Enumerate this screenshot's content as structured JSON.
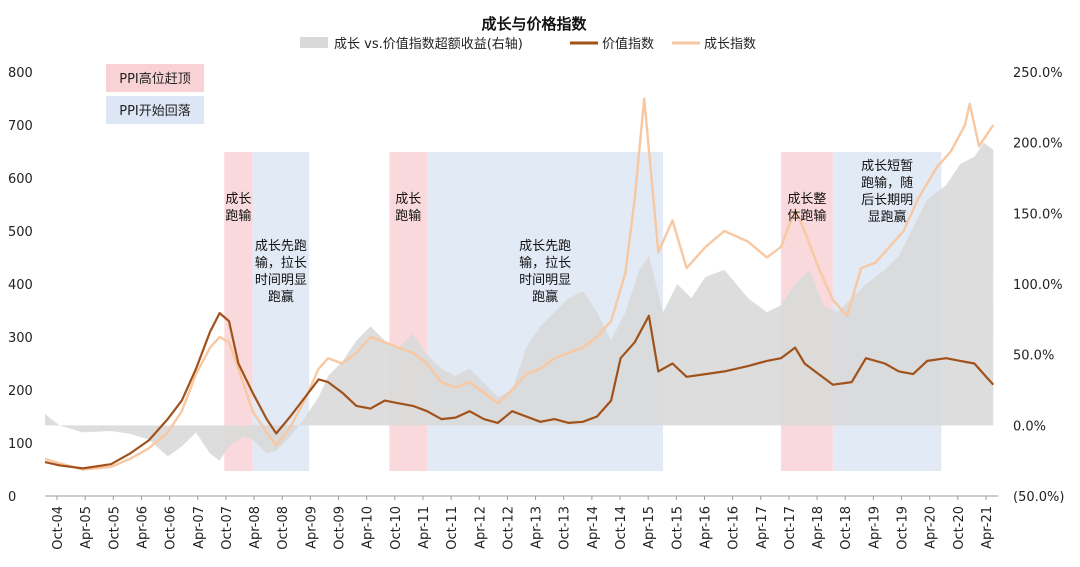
{
  "chart_data": {
    "type": "line",
    "title": "成长与价格指数",
    "colors": {
      "excess": "#d9d9d9",
      "value": "#a0521a",
      "growth": "#f7c8a2",
      "ppi_peak": "#f9d2d6",
      "ppi_fall": "#dde6f5"
    },
    "legend": {
      "excess": "成长 vs.价值指数超额收益(右轴)",
      "value": "价值指数",
      "growth": "成长指数"
    },
    "y_left": {
      "ticks": [
        "0",
        "100",
        "200",
        "300",
        "400",
        "500",
        "600",
        "700",
        "800"
      ],
      "min": 0,
      "max": 800
    },
    "y_right": {
      "ticks": [
        "(50.0%)",
        "0.0%",
        "50.0%",
        "100.0%",
        "150.0%",
        "200.0%",
        "250.0%"
      ],
      "min": -50,
      "max": 250
    },
    "x_ticks": [
      "Oct-04",
      "Apr-05",
      "Oct-05",
      "Apr-06",
      "Oct-06",
      "Apr-07",
      "Oct-07",
      "Apr-08",
      "Oct-08",
      "Apr-09",
      "Oct-09",
      "Apr-10",
      "Oct-10",
      "Apr-11",
      "Oct-11",
      "Apr-12",
      "Oct-12",
      "Apr-13",
      "Oct-13",
      "Apr-14",
      "Oct-14",
      "Apr-15",
      "Oct-15",
      "Apr-16",
      "Oct-16",
      "Apr-17",
      "Oct-17",
      "Apr-18",
      "Oct-18",
      "Apr-19",
      "Oct-19",
      "Apr-20",
      "Oct-20",
      "Apr-21"
    ],
    "shade_legend": {
      "peak": "PPI高位赶顶",
      "fall": "PPI开始回落"
    },
    "shaded_regions": [
      {
        "kind": "peak",
        "start": "2007-12",
        "end": "2008-06",
        "label_lines": [
          "成长",
          "跑输"
        ]
      },
      {
        "kind": "fall",
        "start": "2008-06",
        "end": "2009-06",
        "label_lines": [
          "成长先跑",
          "输，拉长",
          "时间明显",
          "跑赢"
        ]
      },
      {
        "kind": "peak",
        "start": "2010-11",
        "end": "2011-07",
        "label_lines": [
          "成长",
          "跑输"
        ]
      },
      {
        "kind": "fall",
        "start": "2011-07",
        "end": "2015-09",
        "label_lines": [
          "成长先跑",
          "输，拉长",
          "时间明显",
          "跑赢"
        ]
      },
      {
        "kind": "peak",
        "start": "2017-10",
        "end": "2018-09",
        "label_lines": [
          "成长整",
          "体跑输"
        ]
      },
      {
        "kind": "fall",
        "start": "2018-09",
        "end": "2020-08",
        "label_lines": [
          "成长短暂",
          "跑输，随",
          "后长期明",
          "显跑赢"
        ]
      }
    ],
    "series": [
      {
        "name": "价值指数",
        "axis": "left",
        "key": "value",
        "points": [
          [
            "2004-10",
            64
          ],
          [
            "2005-01",
            58
          ],
          [
            "2005-06",
            52
          ],
          [
            "2005-12",
            60
          ],
          [
            "2006-04",
            80
          ],
          [
            "2006-08",
            105
          ],
          [
            "2006-12",
            145
          ],
          [
            "2007-03",
            180
          ],
          [
            "2007-06",
            240
          ],
          [
            "2007-09",
            310
          ],
          [
            "2007-11",
            345
          ],
          [
            "2008-01",
            330
          ],
          [
            "2008-03",
            250
          ],
          [
            "2008-06",
            195
          ],
          [
            "2008-09",
            145
          ],
          [
            "2008-11",
            118
          ],
          [
            "2009-02",
            150
          ],
          [
            "2009-05",
            185
          ],
          [
            "2009-08",
            220
          ],
          [
            "2009-10",
            215
          ],
          [
            "2010-01",
            195
          ],
          [
            "2010-04",
            170
          ],
          [
            "2010-07",
            165
          ],
          [
            "2010-10",
            180
          ],
          [
            "2011-01",
            175
          ],
          [
            "2011-04",
            170
          ],
          [
            "2011-07",
            160
          ],
          [
            "2011-10",
            145
          ],
          [
            "2012-01",
            148
          ],
          [
            "2012-04",
            160
          ],
          [
            "2012-07",
            145
          ],
          [
            "2012-10",
            138
          ],
          [
            "2013-01",
            160
          ],
          [
            "2013-04",
            150
          ],
          [
            "2013-07",
            140
          ],
          [
            "2013-10",
            145
          ],
          [
            "2014-01",
            138
          ],
          [
            "2014-04",
            140
          ],
          [
            "2014-07",
            150
          ],
          [
            "2014-10",
            180
          ],
          [
            "2014-12",
            260
          ],
          [
            "2015-03",
            290
          ],
          [
            "2015-06",
            340
          ],
          [
            "2015-08",
            235
          ],
          [
            "2015-11",
            250
          ],
          [
            "2016-02",
            225
          ],
          [
            "2016-06",
            230
          ],
          [
            "2016-10",
            235
          ],
          [
            "2017-03",
            245
          ],
          [
            "2017-07",
            255
          ],
          [
            "2017-10",
            260
          ],
          [
            "2018-01",
            280
          ],
          [
            "2018-03",
            250
          ],
          [
            "2018-06",
            230
          ],
          [
            "2018-09",
            210
          ],
          [
            "2019-01",
            215
          ],
          [
            "2019-04",
            260
          ],
          [
            "2019-08",
            250
          ],
          [
            "2019-11",
            235
          ],
          [
            "2020-02",
            230
          ],
          [
            "2020-05",
            255
          ],
          [
            "2020-09",
            260
          ],
          [
            "2020-12",
            255
          ],
          [
            "2021-03",
            250
          ],
          [
            "2021-05",
            230
          ],
          [
            "2021-07",
            210
          ]
        ]
      },
      {
        "name": "成长指数",
        "axis": "left",
        "key": "growth",
        "points": [
          [
            "2004-10",
            70
          ],
          [
            "2005-01",
            62
          ],
          [
            "2005-06",
            50
          ],
          [
            "2005-12",
            55
          ],
          [
            "2006-04",
            70
          ],
          [
            "2006-08",
            90
          ],
          [
            "2006-12",
            120
          ],
          [
            "2007-03",
            160
          ],
          [
            "2007-06",
            230
          ],
          [
            "2007-09",
            280
          ],
          [
            "2007-11",
            300
          ],
          [
            "2008-01",
            290
          ],
          [
            "2008-03",
            240
          ],
          [
            "2008-06",
            160
          ],
          [
            "2008-09",
            120
          ],
          [
            "2008-11",
            95
          ],
          [
            "2009-02",
            130
          ],
          [
            "2009-05",
            180
          ],
          [
            "2009-08",
            240
          ],
          [
            "2009-10",
            260
          ],
          [
            "2010-01",
            250
          ],
          [
            "2010-04",
            270
          ],
          [
            "2010-07",
            300
          ],
          [
            "2010-10",
            290
          ],
          [
            "2011-01",
            280
          ],
          [
            "2011-04",
            270
          ],
          [
            "2011-07",
            250
          ],
          [
            "2011-10",
            215
          ],
          [
            "2012-01",
            205
          ],
          [
            "2012-04",
            215
          ],
          [
            "2012-07",
            195
          ],
          [
            "2012-10",
            175
          ],
          [
            "2013-01",
            200
          ],
          [
            "2013-04",
            230
          ],
          [
            "2013-07",
            240
          ],
          [
            "2013-10",
            260
          ],
          [
            "2014-01",
            270
          ],
          [
            "2014-04",
            280
          ],
          [
            "2014-07",
            300
          ],
          [
            "2014-10",
            330
          ],
          [
            "2015-01",
            420
          ],
          [
            "2015-03",
            560
          ],
          [
            "2015-05",
            750
          ],
          [
            "2015-08",
            460
          ],
          [
            "2015-11",
            520
          ],
          [
            "2016-02",
            430
          ],
          [
            "2016-06",
            470
          ],
          [
            "2016-10",
            500
          ],
          [
            "2017-03",
            480
          ],
          [
            "2017-07",
            450
          ],
          [
            "2017-10",
            470
          ],
          [
            "2018-01",
            540
          ],
          [
            "2018-03",
            500
          ],
          [
            "2018-06",
            430
          ],
          [
            "2018-09",
            370
          ],
          [
            "2018-12",
            340
          ],
          [
            "2019-03",
            430
          ],
          [
            "2019-06",
            440
          ],
          [
            "2019-09",
            470
          ],
          [
            "2019-12",
            500
          ],
          [
            "2020-03",
            560
          ],
          [
            "2020-07",
            620
          ],
          [
            "2020-10",
            650
          ],
          [
            "2021-01",
            700
          ],
          [
            "2021-02",
            740
          ],
          [
            "2021-04",
            660
          ],
          [
            "2021-07",
            700
          ]
        ]
      },
      {
        "name": "成长 vs.价值指数超额收益(右轴)",
        "axis": "right",
        "key": "excess",
        "points": [
          [
            "2004-10",
            8
          ],
          [
            "2005-01",
            0
          ],
          [
            "2005-06",
            -5
          ],
          [
            "2005-12",
            -4
          ],
          [
            "2006-04",
            -6
          ],
          [
            "2006-08",
            -10
          ],
          [
            "2006-12",
            -22
          ],
          [
            "2007-03",
            -15
          ],
          [
            "2007-06",
            -5
          ],
          [
            "2007-09",
            -20
          ],
          [
            "2007-11",
            -25
          ],
          [
            "2008-01",
            -15
          ],
          [
            "2008-04",
            -8
          ],
          [
            "2008-06",
            -10
          ],
          [
            "2008-09",
            -20
          ],
          [
            "2008-11",
            -18
          ],
          [
            "2009-02",
            -8
          ],
          [
            "2009-05",
            5
          ],
          [
            "2009-08",
            20
          ],
          [
            "2009-10",
            35
          ],
          [
            "2010-01",
            45
          ],
          [
            "2010-04",
            60
          ],
          [
            "2010-07",
            70
          ],
          [
            "2010-10",
            60
          ],
          [
            "2011-01",
            55
          ],
          [
            "2011-04",
            65
          ],
          [
            "2011-07",
            50
          ],
          [
            "2011-10",
            40
          ],
          [
            "2012-01",
            35
          ],
          [
            "2012-04",
            40
          ],
          [
            "2012-07",
            30
          ],
          [
            "2012-10",
            20
          ],
          [
            "2013-01",
            25
          ],
          [
            "2013-04",
            55
          ],
          [
            "2013-07",
            70
          ],
          [
            "2013-10",
            80
          ],
          [
            "2014-01",
            90
          ],
          [
            "2014-04",
            95
          ],
          [
            "2014-07",
            80
          ],
          [
            "2014-10",
            60
          ],
          [
            "2015-01",
            80
          ],
          [
            "2015-04",
            110
          ],
          [
            "2015-06",
            120
          ],
          [
            "2015-09",
            80
          ],
          [
            "2015-12",
            100
          ],
          [
            "2016-03",
            90
          ],
          [
            "2016-06",
            105
          ],
          [
            "2016-10",
            110
          ],
          [
            "2017-03",
            90
          ],
          [
            "2017-07",
            80
          ],
          [
            "2017-10",
            85
          ],
          [
            "2018-01",
            100
          ],
          [
            "2018-04",
            110
          ],
          [
            "2018-07",
            85
          ],
          [
            "2018-10",
            80
          ],
          [
            "2019-01",
            90
          ],
          [
            "2019-04",
            100
          ],
          [
            "2019-08",
            110
          ],
          [
            "2019-11",
            120
          ],
          [
            "2020-02",
            140
          ],
          [
            "2020-05",
            160
          ],
          [
            "2020-09",
            170
          ],
          [
            "2020-12",
            185
          ],
          [
            "2021-03",
            190
          ],
          [
            "2021-05",
            200
          ],
          [
            "2021-07",
            195
          ]
        ]
      }
    ]
  }
}
